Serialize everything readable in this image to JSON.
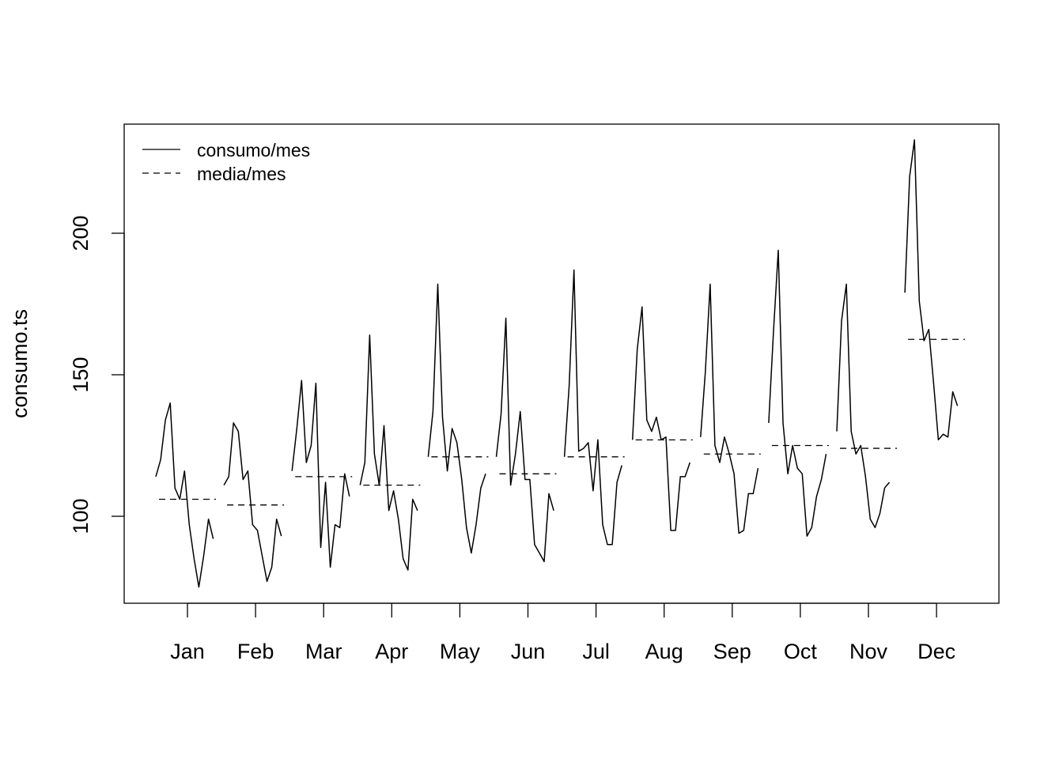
{
  "chart_data": {
    "type": "line",
    "title": "",
    "xlabel": "",
    "ylabel": "consumo.ts",
    "ylim": [
      70,
      240
    ],
    "yticks": [
      100,
      150,
      200
    ],
    "categories": [
      "Jan",
      "Feb",
      "Mar",
      "Apr",
      "May",
      "Jun",
      "Jul",
      "Aug",
      "Sep",
      "Oct",
      "Nov",
      "Dec"
    ],
    "grid": false,
    "legend": {
      "position": "top-left",
      "entries": [
        {
          "label": "consumo/mes",
          "style": "solid"
        },
        {
          "label": "media/mes",
          "style": "dashed"
        }
      ]
    },
    "series": [
      {
        "name": "consumo/mes",
        "style": "solid",
        "values_by_month": [
          [
            114,
            120,
            134,
            140,
            110,
            106,
            116,
            97,
            85,
            75,
            86,
            99,
            92
          ],
          [
            111,
            114,
            133,
            130,
            113,
            116,
            97,
            95,
            86,
            77,
            82,
            99,
            93
          ],
          [
            116,
            131,
            148,
            119,
            125,
            147,
            89,
            112,
            82,
            97,
            96,
            115,
            107
          ],
          [
            111,
            119,
            164,
            122,
            111,
            132,
            102,
            109,
            99,
            85,
            81,
            106,
            102
          ],
          [
            121,
            137,
            182,
            135,
            116,
            131,
            126,
            113,
            96,
            87,
            97,
            110,
            115
          ],
          [
            121,
            136,
            170,
            111,
            122,
            137,
            113,
            113,
            90,
            87,
            84,
            108,
            102
          ],
          [
            121,
            146,
            187,
            123,
            124,
            126,
            109,
            127,
            97,
            90,
            90,
            112,
            118
          ],
          [
            127,
            159,
            174,
            134,
            130,
            135,
            127,
            128,
            95,
            95,
            114,
            114,
            119
          ],
          [
            128,
            151,
            182,
            125,
            119,
            128,
            122,
            115,
            94,
            95,
            108,
            108,
            117
          ],
          [
            133,
            165,
            194,
            133,
            115,
            125,
            117,
            115,
            93,
            96,
            107,
            113,
            122
          ],
          [
            130,
            169,
            182,
            130,
            122,
            125,
            114,
            99,
            96,
            101,
            110,
            112
          ],
          [
            179,
            220,
            233,
            176,
            162,
            166,
            147,
            127,
            129,
            128,
            144,
            139
          ]
        ]
      },
      {
        "name": "media/mes",
        "style": "dashed",
        "values": [
          106,
          104,
          114,
          111,
          121,
          115,
          121,
          127,
          122,
          125,
          124,
          162.5
        ]
      }
    ]
  }
}
